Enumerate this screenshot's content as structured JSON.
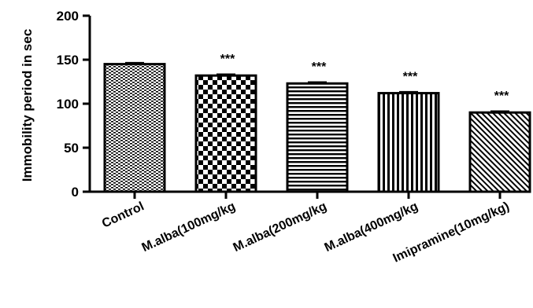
{
  "chart_data": {
    "type": "bar",
    "title": "",
    "xlabel": "",
    "ylabel": "Immobility period in sec",
    "ylim": [
      0,
      200
    ],
    "yticks": [
      "0",
      "50",
      "100",
      "150",
      "200"
    ],
    "grid": false,
    "categories": [
      "Control",
      "M.alba(100mg/kg",
      "M.alba(200mg/kg",
      "M.alba(400mg/kg",
      "Imipramine(10mg/kg)"
    ],
    "values": [
      145,
      132,
      123,
      112,
      90
    ],
    "errors": [
      1.5,
      1.5,
      1.5,
      1.5,
      1.5
    ],
    "significance": [
      "",
      "***",
      "***",
      "***",
      "***"
    ],
    "patterns": [
      "dots",
      "checker",
      "hlines",
      "vlines",
      "diagonal"
    ],
    "bar_color": "#000000"
  }
}
